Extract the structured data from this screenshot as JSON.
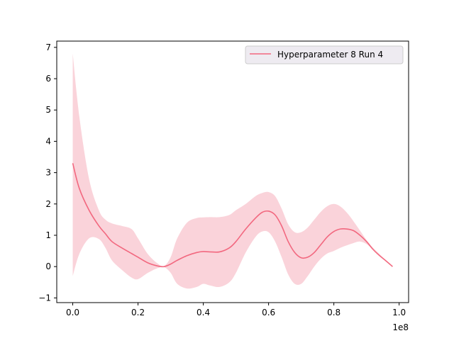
{
  "chart_data": {
    "type": "line",
    "title": "",
    "xlabel": "",
    "ylabel": "",
    "x_offset_label": "1e8",
    "xlim": [
      -0.049,
      1.029
    ],
    "ylim": [
      -1.15,
      7.2
    ],
    "x_ticks": [
      0.0,
      0.2,
      0.4,
      0.6,
      0.8,
      1.0
    ],
    "x_tick_labels": [
      "0.0",
      "0.2",
      "0.4",
      "0.6",
      "0.8",
      "1.0"
    ],
    "y_ticks": [
      -1,
      0,
      1,
      2,
      3,
      4,
      5,
      6,
      7
    ],
    "y_tick_labels": [
      "−1",
      "0",
      "1",
      "2",
      "3",
      "4",
      "5",
      "6",
      "7"
    ],
    "grid": false,
    "legend": {
      "placement": "upper right",
      "entries": [
        "Hyperparameter 8 Run 4"
      ]
    },
    "series": [
      {
        "name": "Hyperparameter 8 Run 4",
        "color": "#f2687f",
        "band_color": "#fad3da",
        "x": [
          0.0,
          0.02,
          0.05,
          0.08,
          0.1,
          0.12,
          0.15,
          0.18,
          0.2,
          0.23,
          0.26,
          0.28,
          0.3,
          0.32,
          0.35,
          0.38,
          0.4,
          0.42,
          0.45,
          0.48,
          0.5,
          0.53,
          0.56,
          0.58,
          0.6,
          0.62,
          0.64,
          0.66,
          0.68,
          0.7,
          0.72,
          0.74,
          0.76,
          0.78,
          0.8,
          0.82,
          0.84,
          0.86,
          0.88,
          0.9,
          0.92,
          0.94,
          0.96,
          0.98
        ],
        "y": [
          3.3,
          2.5,
          1.8,
          1.3,
          1.05,
          0.8,
          0.6,
          0.42,
          0.3,
          0.12,
          0.02,
          0.0,
          0.08,
          0.2,
          0.35,
          0.45,
          0.48,
          0.47,
          0.47,
          0.6,
          0.8,
          1.2,
          1.55,
          1.73,
          1.77,
          1.65,
          1.3,
          0.8,
          0.45,
          0.28,
          0.3,
          0.45,
          0.7,
          0.95,
          1.12,
          1.2,
          1.2,
          1.15,
          1.0,
          0.8,
          0.55,
          0.35,
          0.18,
          0.0
        ],
        "upper": [
          6.8,
          4.8,
          2.8,
          1.8,
          1.5,
          1.38,
          1.3,
          1.2,
          0.9,
          0.4,
          0.1,
          0.02,
          0.3,
          0.9,
          1.4,
          1.55,
          1.57,
          1.58,
          1.58,
          1.65,
          1.8,
          2.0,
          2.25,
          2.35,
          2.38,
          2.25,
          1.85,
          1.35,
          1.1,
          1.1,
          1.25,
          1.5,
          1.75,
          1.93,
          2.0,
          1.92,
          1.72,
          1.45,
          1.15,
          0.85,
          0.6,
          0.4,
          0.2,
          0.02
        ],
        "lower": [
          -0.3,
          0.4,
          0.9,
          0.88,
          0.6,
          0.2,
          -0.1,
          -0.35,
          -0.4,
          -0.2,
          -0.05,
          -0.02,
          -0.2,
          -0.55,
          -0.7,
          -0.65,
          -0.55,
          -0.6,
          -0.65,
          -0.5,
          -0.2,
          0.45,
          0.95,
          1.12,
          1.1,
          0.8,
          0.3,
          -0.25,
          -0.55,
          -0.55,
          -0.3,
          0.0,
          0.25,
          0.42,
          0.5,
          0.6,
          0.68,
          0.75,
          0.8,
          0.72,
          0.55,
          0.35,
          0.16,
          -0.01
        ]
      }
    ]
  }
}
